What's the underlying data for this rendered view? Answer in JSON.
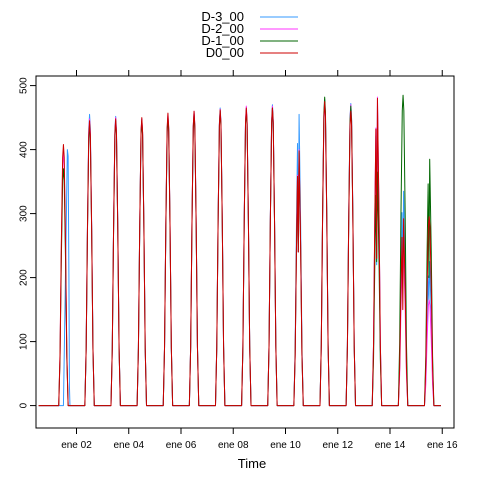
{
  "chart_data": {
    "type": "line",
    "title": "",
    "xlabel": "Time",
    "ylabel": "",
    "xlim": [
      0.45,
      16.45
    ],
    "ylim": [
      -35,
      515
    ],
    "yticks": [
      0,
      100,
      200,
      300,
      400,
      500
    ],
    "xticks": [
      {
        "x": 2,
        "label": "ene 02"
      },
      {
        "x": 4,
        "label": "ene 04"
      },
      {
        "x": 6,
        "label": "ene 06"
      },
      {
        "x": 8,
        "label": "ene 08"
      },
      {
        "x": 10,
        "label": "ene 10"
      },
      {
        "x": 12,
        "label": "ene 12"
      },
      {
        "x": 14,
        "label": "ene 14"
      },
      {
        "x": 16,
        "label": "ene 16"
      }
    ],
    "x_unit": "days since 2025-12-31 00:00 (ene 01)",
    "grid": false,
    "legend_position": "top-center",
    "series": [
      {
        "name": "D-3_00",
        "color": "#3399ff",
        "peaks": [
          {
            "day": 1,
            "center": 1.62,
            "shape": [
              [
                1.5,
                0
              ],
              [
                1.55,
                130
              ],
              [
                1.6,
                260
              ],
              [
                1.65,
                400
              ],
              [
                1.68,
                390
              ],
              [
                1.71,
                200
              ],
              [
                1.73,
                30
              ],
              [
                1.75,
                0
              ]
            ]
          },
          {
            "day": 2,
            "peak": 455
          },
          {
            "day": 3,
            "peak": 452
          },
          {
            "day": 4,
            "peak": 448
          },
          {
            "day": 5,
            "peak": 452
          },
          {
            "day": 6,
            "peak": 458
          },
          {
            "day": 7,
            "peak": 465
          },
          {
            "day": 8,
            "peak": 465
          },
          {
            "day": 9,
            "peak": 470
          },
          {
            "day": 10,
            "peak": 455,
            "dip": 240
          },
          {
            "day": 11,
            "peak": 478
          },
          {
            "day": 12,
            "peak": 472
          },
          {
            "day": 13,
            "peak": 468,
            "dip": 220
          },
          {
            "day": 14,
            "peak": 335,
            "dip": 200
          },
          {
            "day": 15,
            "peak": 225,
            "dip": 160
          }
        ]
      },
      {
        "name": "D-2_00",
        "color": "#ff33ff",
        "peaks": [
          {
            "day": 1,
            "peak": 395
          },
          {
            "day": 2,
            "peak": 448
          },
          {
            "day": 3,
            "peak": 450
          },
          {
            "day": 4,
            "peak": 448
          },
          {
            "day": 5,
            "peak": 455
          },
          {
            "day": 6,
            "peak": 460
          },
          {
            "day": 7,
            "peak": 463
          },
          {
            "day": 8,
            "peak": 468
          },
          {
            "day": 9,
            "peak": 468
          },
          {
            "day": 10,
            "peak": 400,
            "dip": 240
          },
          {
            "day": 11,
            "peak": 472
          },
          {
            "day": 12,
            "peak": 470
          },
          {
            "day": 13,
            "peak": 482,
            "dip": 230
          },
          {
            "day": 14,
            "peak": 245,
            "dip": 200
          },
          {
            "day": 15,
            "peak": 165
          }
        ]
      },
      {
        "name": "D-1_00",
        "color": "#006600",
        "peaks": [
          {
            "day": 1,
            "peak": 370
          },
          {
            "day": 2,
            "peak": 440
          },
          {
            "day": 3,
            "peak": 445
          },
          {
            "day": 4,
            "peak": 445
          },
          {
            "day": 5,
            "peak": 450
          },
          {
            "day": 6,
            "peak": 455
          },
          {
            "day": 7,
            "peak": 460
          },
          {
            "day": 8,
            "peak": 462
          },
          {
            "day": 9,
            "peak": 465
          },
          {
            "day": 10,
            "peak": 395,
            "dip": 240
          },
          {
            "day": 11,
            "peak": 482
          },
          {
            "day": 12,
            "peak": 468
          },
          {
            "day": 13,
            "peak": 365,
            "dip": 225
          },
          {
            "day": 14,
            "peak": 485
          },
          {
            "day": 15,
            "peak": 385,
            "dip": 200
          }
        ]
      },
      {
        "name": "D0_00",
        "color": "#cc0000",
        "peaks": [
          {
            "day": 1,
            "peak": 408
          },
          {
            "day": 2,
            "peak": 445
          },
          {
            "day": 3,
            "peak": 448
          },
          {
            "day": 4,
            "peak": 450
          },
          {
            "day": 5,
            "peak": 457
          },
          {
            "day": 6,
            "peak": 460
          },
          {
            "day": 7,
            "peak": 462
          },
          {
            "day": 8,
            "peak": 465
          },
          {
            "day": 9,
            "peak": 465
          },
          {
            "day": 10,
            "peak": 398,
            "dip": 240
          },
          {
            "day": 11,
            "peak": 475
          },
          {
            "day": 12,
            "peak": 460
          },
          {
            "day": 13,
            "peak": 480,
            "dip": 230
          },
          {
            "day": 14,
            "peak": 292,
            "dip": 150
          },
          {
            "day": 15,
            "peak": 295
          }
        ]
      }
    ],
    "baseline": 0,
    "series_start_day": 0.55,
    "series_end_day": 15.95
  }
}
